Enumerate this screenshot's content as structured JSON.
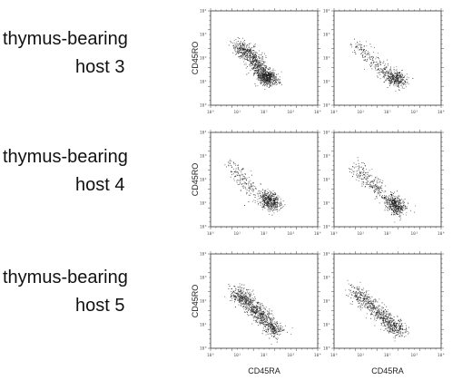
{
  "rows": [
    {
      "label_line1": "thymus-bearing",
      "label_line2": "host 3"
    },
    {
      "label_line1": "thymus-bearing",
      "label_line2": "host 4"
    },
    {
      "label_line1": "thymus-bearing",
      "label_line2": "host 5"
    }
  ],
  "chart_data": {
    "type": "scatter",
    "xlabel": "CD45RA",
    "ylabel": "CD45RO",
    "xscale": "log",
    "yscale": "log",
    "xlim": [
      1,
      10000
    ],
    "ylim": [
      1,
      10000
    ],
    "x_ticks": [
      "10⁰",
      "10¹",
      "10²",
      "10³",
      "10⁴"
    ],
    "y_ticks": [
      "10⁰",
      "10¹",
      "10²",
      "10³",
      "10⁴"
    ],
    "panels": [
      {
        "row": 0,
        "col": 0,
        "clusters": [
          {
            "x": [
              10,
              25,
              50,
              90,
              130
            ],
            "y": [
              300,
              180,
              60,
              20,
              15
            ],
            "n": 900
          },
          {
            "x": [
              120,
              200
            ],
            "y": [
              15,
              12
            ],
            "n": 250
          }
        ]
      },
      {
        "row": 0,
        "col": 1,
        "clusters": [
          {
            "x": [
              6,
              20,
              60,
              150
            ],
            "y": [
              400,
              120,
              30,
              12
            ],
            "n": 250
          },
          {
            "x": [
              150,
              300
            ],
            "y": [
              20,
              10
            ],
            "n": 300
          }
        ]
      },
      {
        "row": 1,
        "col": 0,
        "clusters": [
          {
            "x": [
              5,
              20,
              60
            ],
            "y": [
              500,
              80,
              20
            ],
            "n": 180
          },
          {
            "x": [
              100,
              250
            ],
            "y": [
              20,
              8
            ],
            "n": 450
          }
        ]
      },
      {
        "row": 1,
        "col": 1,
        "clusters": [
          {
            "x": [
              5,
              20,
              60
            ],
            "y": [
              400,
              100,
              25
            ],
            "n": 220
          },
          {
            "x": [
              120,
              300
            ],
            "y": [
              15,
              5
            ],
            "n": 450
          }
        ]
      },
      {
        "row": 2,
        "col": 0,
        "clusters": [
          {
            "x": [
              8,
              20,
              50,
              110
            ],
            "y": [
              250,
              120,
              40,
              15
            ],
            "n": 700
          },
          {
            "x": [
              150,
              300
            ],
            "y": [
              10,
              5
            ],
            "n": 250
          }
        ]
      },
      {
        "row": 2,
        "col": 1,
        "clusters": [
          {
            "x": [
              5,
              15,
              50,
              100
            ],
            "y": [
              300,
              100,
              30,
              12
            ],
            "n": 500
          },
          {
            "x": [
              120,
              300
            ],
            "y": [
              12,
              5
            ],
            "n": 250
          }
        ]
      }
    ]
  }
}
